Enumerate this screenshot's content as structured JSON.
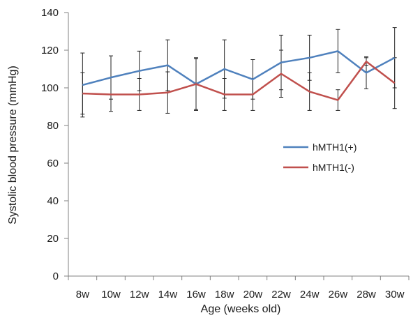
{
  "chart_data": {
    "type": "line",
    "title": "",
    "xlabel": "Age (weeks old)",
    "ylabel": "Systolic blood pressure (mmHg)",
    "ylim": [
      0,
      140
    ],
    "yticks": [
      0,
      20,
      40,
      60,
      80,
      100,
      120,
      140
    ],
    "grid": false,
    "legend_position": "right",
    "categories": [
      "8w",
      "10w",
      "12w",
      "14w",
      "16w",
      "18w",
      "20w",
      "22w",
      "24w",
      "26w",
      "28w",
      "30w"
    ],
    "series": [
      {
        "name": "hMTH1(+)",
        "color": "#4f81bd",
        "values": [
          101.5,
          105.5,
          109,
          112,
          102,
          110,
          104.5,
          113.5,
          116,
          119.5,
          108,
          116
        ],
        "error": [
          17,
          11.5,
          10.5,
          13.5,
          14,
          15.5,
          10.5,
          14.5,
          12,
          11.5,
          8.5,
          16
        ]
      },
      {
        "name": "hMTH1(-)",
        "color": "#c0504d",
        "values": [
          97,
          96.5,
          96.5,
          97.5,
          102,
          96.5,
          96.5,
          107.5,
          98,
          93.5,
          114,
          102.5
        ],
        "error": [
          11,
          9,
          8.5,
          11,
          13.5,
          8.5,
          8.5,
          12.5,
          10,
          5.5,
          2,
          13.5
        ]
      }
    ]
  }
}
